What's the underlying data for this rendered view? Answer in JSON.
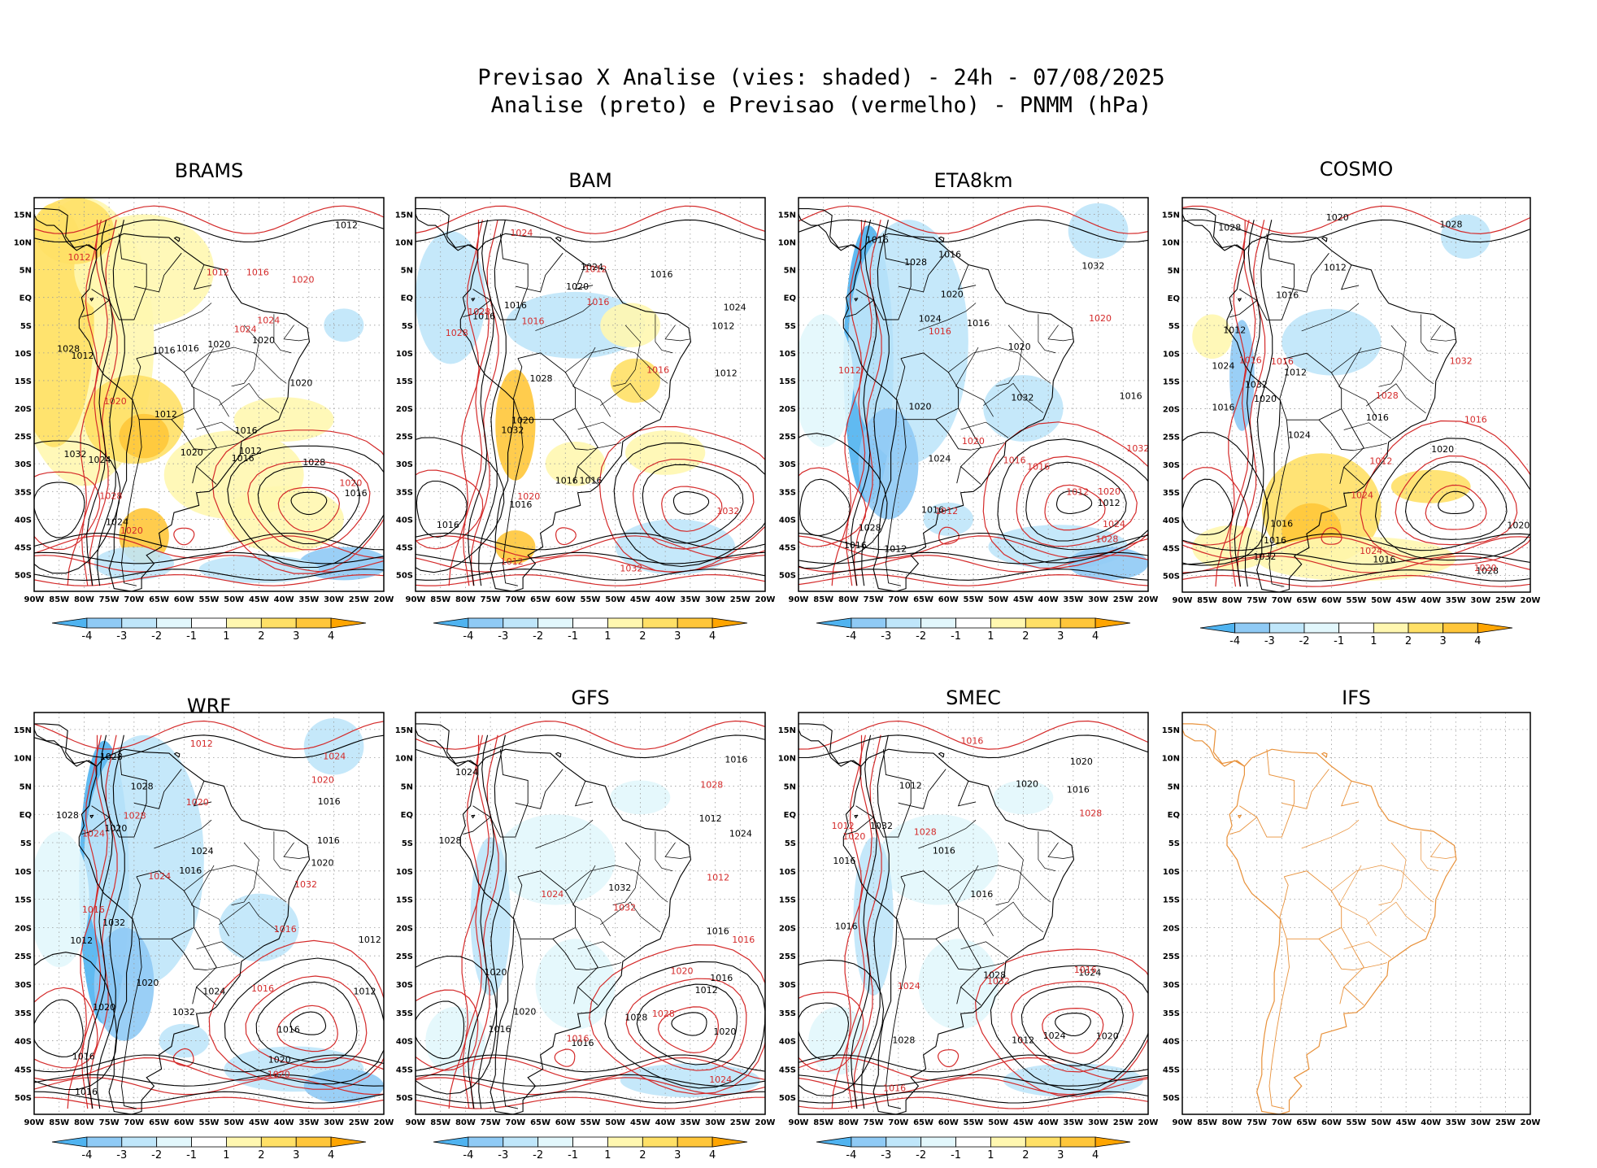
{
  "header": {
    "title_line1": "Previsao X Analise (vies: shaded) - 24h - 07/08/2025",
    "title_line2": "Analise (preto) e Previsao (vermelho) - PNMM (hPa)"
  },
  "map_axes": {
    "lon_labels": [
      "90W",
      "85W",
      "80W",
      "75W",
      "70W",
      "65W",
      "60W",
      "55W",
      "50W",
      "45W",
      "40W",
      "35W",
      "30W",
      "25W",
      "20W"
    ],
    "lat_labels": [
      "15N",
      "10N",
      "5N",
      "EQ",
      "5S",
      "10S",
      "15S",
      "20S",
      "25S",
      "30S",
      "35S",
      "40S",
      "45S",
      "50S"
    ]
  },
  "colorbar": {
    "labels": [
      "-4",
      "-3",
      "-2",
      "-1",
      "1",
      "2",
      "3",
      "4"
    ],
    "colors": [
      "#4fb3f0",
      "#8fcaf5",
      "#bfe6fa",
      "#e2f7fc",
      "#ffffff",
      "#fff7b0",
      "#ffe066",
      "#ffc63a",
      "#ffa500"
    ]
  },
  "colors": {
    "analysis_isobar": "#000000",
    "forecast_isobar": "#d42a2a",
    "ifs_coast": "#e8913a",
    "grid": "#9a9a9a"
  },
  "panels": [
    {
      "id": "brams",
      "title": "BRAMS",
      "has_colorbar": true,
      "bias": "warm",
      "labels_black": [
        "1012",
        "1012",
        "1012",
        "1016",
        "1012",
        "1016",
        "1020",
        "1016",
        "1016",
        "1020",
        "1024",
        "1028",
        "1024",
        "1020",
        "1028",
        "1016",
        "1020",
        "1032"
      ],
      "labels_red": [
        "1016",
        "1012",
        "1012",
        "1020",
        "1020",
        "1024",
        "1024",
        "1028",
        "1020",
        "1020"
      ]
    },
    {
      "id": "bam",
      "title": "BAM",
      "has_colorbar": true,
      "bias": "mixed",
      "labels_black": [
        "1016",
        "1016",
        "1016",
        "1012",
        "1016",
        "1016",
        "1020",
        "1024",
        "1028",
        "1016",
        "1020",
        "1024",
        "1016",
        "1012",
        "1032"
      ],
      "labels_red": [
        "1016",
        "1012",
        "1016",
        "1012",
        "1016",
        "1020",
        "1024",
        "1028",
        "1032",
        "1028",
        "1032"
      ]
    },
    {
      "id": "eta8km",
      "title": "ETA8km",
      "has_colorbar": true,
      "bias": "cold",
      "labels_black": [
        "1016",
        "1016",
        "1016",
        "1012",
        "1016",
        "1020",
        "1016",
        "1024",
        "1020",
        "1028",
        "1024",
        "1032",
        "1028",
        "1020",
        "1032",
        "1016",
        "1012"
      ],
      "labels_red": [
        "1016",
        "1012",
        "1012",
        "1012",
        "1016",
        "1020",
        "1020",
        "1024",
        "1028",
        "1032",
        "1016",
        "1020"
      ]
    },
    {
      "id": "cosmo",
      "title": "COSMO",
      "has_colorbar": true,
      "bias": "warm-south",
      "labels_black": [
        "1016",
        "1016",
        "1012",
        "1016",
        "1012",
        "1016",
        "1020",
        "1016",
        "1024",
        "1020",
        "1020",
        "1028",
        "1032",
        "1028",
        "1024",
        "1020",
        "1016",
        "1012",
        "1028",
        "1032"
      ],
      "labels_red": [
        "1016",
        "1012",
        "1016",
        "1016",
        "1024",
        "1024",
        "1028",
        "1032",
        "1020"
      ]
    },
    {
      "id": "wrf",
      "title": "WRF",
      "has_colorbar": true,
      "bias": "cold",
      "labels_black": [
        "1016",
        "1016",
        "1012",
        "1016",
        "1012",
        "1020",
        "1016",
        "1020",
        "1020",
        "1016",
        "1024",
        "1020",
        "1028",
        "1032",
        "1024",
        "1028",
        "1020",
        "1016",
        "1012",
        "1032",
        "1028"
      ],
      "labels_red": [
        "1016",
        "1016",
        "1016",
        "1012",
        "1020",
        "1024",
        "1028",
        "1020",
        "1024",
        "1032",
        "1020",
        "1024"
      ]
    },
    {
      "id": "gfs",
      "title": "GFS",
      "has_colorbar": true,
      "bias": "slight-cold",
      "labels_black": [
        "1016",
        "1016",
        "1012",
        "1016",
        "1020",
        "1016",
        "1024",
        "1028",
        "1020",
        "1024",
        "1032",
        "1028",
        "1020",
        "1016",
        "1012"
      ],
      "labels_red": [
        "1016",
        "1012",
        "1016",
        "1020",
        "1024",
        "1028",
        "1024",
        "1032",
        "1028"
      ]
    },
    {
      "id": "smec",
      "title": "SMEC",
      "has_colorbar": true,
      "bias": "slight-cold",
      "labels_black": [
        "1016",
        "1016",
        "1012",
        "1016",
        "1020",
        "1016",
        "1024",
        "1020",
        "1028",
        "1024",
        "1020",
        "1028",
        "1032",
        "1016",
        "1012"
      ],
      "labels_red": [
        "1016",
        "1012",
        "1016",
        "1020",
        "1024",
        "1028",
        "1032",
        "1016",
        "1028"
      ]
    },
    {
      "id": "ifs",
      "title": "IFS",
      "has_colorbar": false,
      "bias": "none",
      "labels_black": [],
      "labels_red": []
    }
  ]
}
